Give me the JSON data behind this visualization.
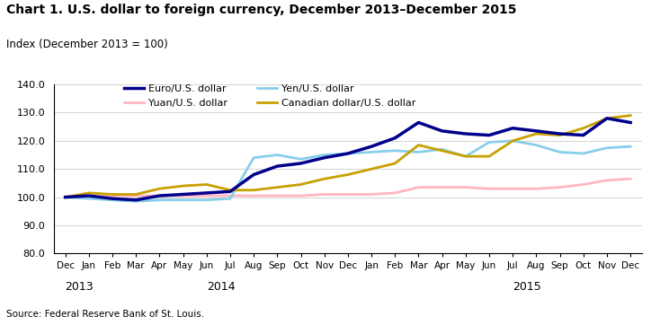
{
  "title": "Chart 1. U.S. dollar to foreign currency, December 2013–December 2015",
  "subtitle": "Index (December 2013 = 100)",
  "source": "Source: Federal Reserve Bank of St. Louis.",
  "xlabels": [
    "Dec",
    "Jan",
    "Feb",
    "Mar",
    "Apr",
    "May",
    "Jun",
    "Jul",
    "Aug",
    "Sep",
    "Oct",
    "Nov",
    "Dec",
    "Jan",
    "Feb",
    "Mar",
    "Apr",
    "May",
    "Jun",
    "Jul",
    "Aug",
    "Sep",
    "Oct",
    "Nov",
    "Dec"
  ],
  "year_ticks": [
    0,
    6,
    19
  ],
  "year_labels": [
    "2013",
    "2014",
    "2015"
  ],
  "ylim": [
    80.0,
    140.0
  ],
  "yticks": [
    80.0,
    90.0,
    100.0,
    110.0,
    120.0,
    130.0,
    140.0
  ],
  "euro": [
    100.0,
    100.5,
    99.5,
    99.0,
    100.5,
    101.0,
    101.5,
    102.0,
    108.0,
    111.0,
    112.0,
    114.0,
    115.5,
    118.0,
    121.0,
    126.5,
    123.5,
    122.5,
    122.0,
    124.5,
    123.5,
    122.5,
    122.0,
    128.0,
    126.5
  ],
  "yen": [
    100.0,
    99.5,
    99.0,
    98.5,
    99.0,
    99.0,
    99.0,
    99.5,
    114.0,
    115.0,
    113.5,
    115.0,
    115.5,
    116.0,
    116.5,
    116.0,
    117.0,
    114.5,
    119.5,
    120.0,
    118.5,
    116.0,
    115.5,
    117.5,
    118.0
  ],
  "yuan": [
    100.0,
    100.0,
    100.5,
    100.5,
    100.5,
    100.5,
    100.5,
    100.5,
    100.5,
    100.5,
    100.5,
    101.0,
    101.0,
    101.0,
    101.5,
    103.5,
    103.5,
    103.5,
    103.0,
    103.0,
    103.0,
    103.5,
    104.5,
    106.0,
    106.5
  ],
  "cad": [
    100.0,
    101.5,
    101.0,
    101.0,
    103.0,
    104.0,
    104.5,
    102.5,
    102.5,
    103.5,
    104.5,
    106.5,
    108.0,
    110.0,
    112.0,
    118.5,
    116.5,
    114.5,
    114.5,
    120.0,
    122.5,
    122.0,
    124.5,
    128.0,
    129.0
  ],
  "euro_color": "#00008B",
  "yen_color": "#87CEEB",
  "yuan_color": "#FFB6C1",
  "cad_color": "#C8A000",
  "euro_label": "Euro/U.S. dollar",
  "yen_label": "Yen/U.S. dollar",
  "yuan_label": "Yuan/U.S. dollar",
  "cad_label": "Canadian dollar/U.S. dollar",
  "linewidth": 2.0,
  "bg_color": "#ffffff"
}
